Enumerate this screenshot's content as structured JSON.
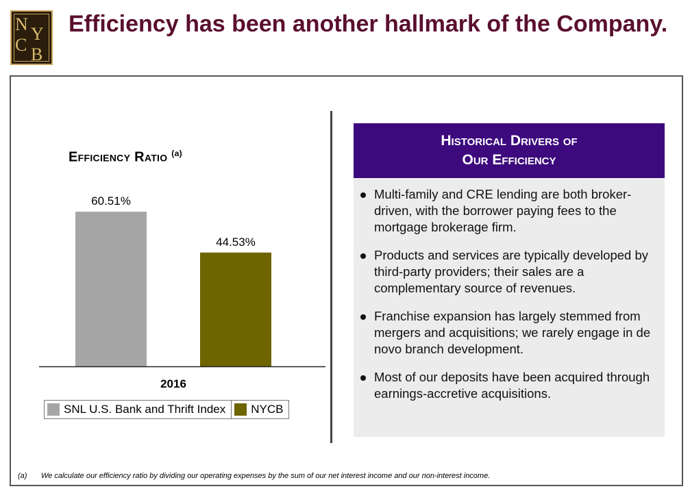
{
  "logo": {
    "letters": [
      "N",
      "Y",
      "C",
      "B"
    ]
  },
  "header": {
    "title": "Efficiency has been another hallmark of the Company."
  },
  "chart": {
    "title": "Efficiency Ratio",
    "title_note": "(a)"
  },
  "chart_data": {
    "type": "bar",
    "title": "Efficiency Ratio (a)",
    "categories": [
      "2016"
    ],
    "series": [
      {
        "name": "SNL U.S. Bank and Thrift Index",
        "values": [
          60.51
        ],
        "label": "60.51%",
        "color": "#a6a6a6"
      },
      {
        "name": "NYCB",
        "values": [
          44.53
        ],
        "label": "44.53%",
        "color": "#6e6400"
      }
    ],
    "xlabel": "",
    "ylabel": "",
    "ylim": [
      0,
      71
    ],
    "grid": false,
    "legend": "bottom"
  },
  "panel": {
    "heading_line1": "Historical Drivers of",
    "heading_line2": "Our Efficiency",
    "bullets": [
      "Multi-family and CRE lending are both broker-driven, with the borrower paying fees to the mortgage brokerage firm.",
      "Products and services are typically developed by third-party providers; their sales are a complementary source of revenues.",
      "Franchise expansion has largely stemmed from mergers and acquisitions; we rarely engage in de novo branch development.",
      "Most of our deposits have been acquired through earnings-accretive acquisitions."
    ]
  },
  "footnote": {
    "mark": "(a)",
    "text": "We calculate our efficiency ratio by dividing our operating expenses by the sum of our net interest income and our non-interest income."
  }
}
